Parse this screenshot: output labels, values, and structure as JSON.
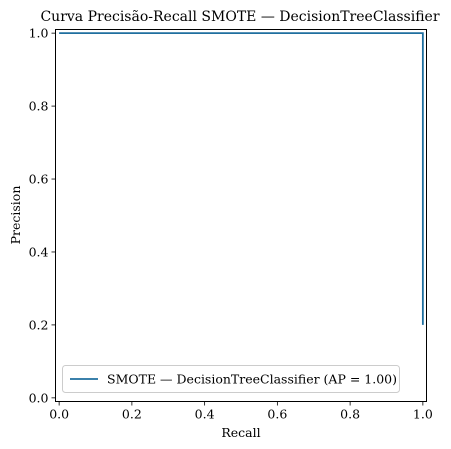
{
  "chart_data": {
    "type": "line",
    "title": "Curva Precisão-Recall SMOTE — DecisionTreeClassifier",
    "xlabel": "Recall",
    "ylabel": "Precision",
    "xlim": [
      -0.01,
      1.01
    ],
    "ylim": [
      -0.01,
      1.01
    ],
    "xticks": [
      0.0,
      0.2,
      0.4,
      0.6,
      0.8,
      1.0
    ],
    "xtick_labels": [
      "0.0",
      "0.2",
      "0.4",
      "0.6",
      "0.8",
      "1.0"
    ],
    "yticks": [
      0.0,
      0.2,
      0.4,
      0.6,
      0.8,
      1.0
    ],
    "ytick_labels": [
      "0.0",
      "0.2",
      "0.4",
      "0.6",
      "0.8",
      "1.0"
    ],
    "grid": false,
    "legend_position": "lower-left",
    "series": [
      {
        "name": "SMOTE — DecisionTreeClassifier (AP = 1.00)",
        "color": "#1f6f9f",
        "step": true,
        "x": [
          0.0,
          1.0,
          1.0
        ],
        "y": [
          1.0,
          1.0,
          0.2
        ]
      }
    ]
  }
}
